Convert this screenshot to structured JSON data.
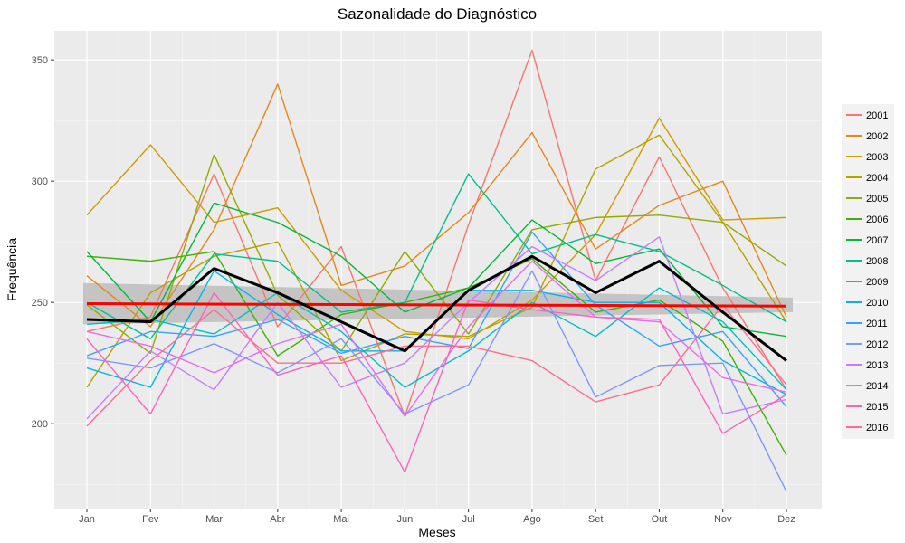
{
  "chart_data": {
    "type": "line",
    "title": "Sazonalidade do Diagnóstico",
    "xlabel": "Meses",
    "ylabel": "Frequência",
    "categories": [
      "Jan",
      "Fev",
      "Mar",
      "Abr",
      "Mai",
      "Jun",
      "Jul",
      "Ago",
      "Set",
      "Out",
      "Nov",
      "Dez"
    ],
    "ylim": [
      165,
      362
    ],
    "yticks": [
      200,
      250,
      300,
      350
    ],
    "grid": true,
    "legend_position": "right",
    "series": [
      {
        "name": "2001",
        "color": "#F8766D",
        "values": [
          238,
          244,
          303,
          240,
          273,
          203,
          282,
          354,
          259,
          310,
          256,
          214
        ]
      },
      {
        "name": "2002",
        "color": "#E7861B",
        "values": [
          261,
          240,
          280,
          340,
          257,
          265,
          287,
          320,
          272,
          290,
          300,
          244
        ]
      },
      {
        "name": "2003",
        "color": "#D09B00",
        "values": [
          286,
          315,
          283,
          289,
          255,
          238,
          235,
          251,
          278,
          326,
          284,
          285
        ]
      },
      {
        "name": "2004",
        "color": "#B3A300",
        "values": [
          215,
          254,
          269,
          275,
          226,
          237,
          236,
          248,
          305,
          319,
          283,
          242
        ]
      },
      {
        "name": "2005",
        "color": "#93AA00",
        "values": [
          249,
          229,
          311,
          253,
          230,
          271,
          237,
          280,
          285,
          286,
          283,
          265
        ]
      },
      {
        "name": "2006",
        "color": "#3BB300",
        "values": [
          269,
          267,
          271,
          228,
          245,
          250,
          256,
          268,
          246,
          251,
          234,
          187
        ]
      },
      {
        "name": "2007",
        "color": "#00BA38",
        "values": [
          271,
          242,
          291,
          283,
          269,
          246,
          256,
          284,
          266,
          272,
          240,
          236
        ]
      },
      {
        "name": "2008",
        "color": "#00C08B",
        "values": [
          250,
          235,
          270,
          267,
          246,
          250,
          303,
          270,
          278,
          271,
          257,
          242
        ]
      },
      {
        "name": "2009",
        "color": "#00BFC4",
        "values": [
          241,
          243,
          237,
          254,
          238,
          215,
          230,
          250,
          236,
          256,
          242,
          214
        ]
      },
      {
        "name": "2010",
        "color": "#00B4F0",
        "values": [
          223,
          215,
          263,
          245,
          230,
          230,
          255,
          255,
          250,
          250,
          226,
          212
        ]
      },
      {
        "name": "2011",
        "color": "#35A2FF",
        "values": [
          228,
          238,
          236,
          243,
          229,
          236,
          231,
          279,
          249,
          232,
          238,
          207
        ]
      },
      {
        "name": "2012",
        "color": "#7F96FF",
        "values": [
          227,
          223,
          233,
          221,
          235,
          204,
          216,
          263,
          211,
          224,
          225,
          172
        ]
      },
      {
        "name": "2013",
        "color": "#C77CFF",
        "values": [
          202,
          230,
          214,
          250,
          215,
          225,
          250,
          273,
          259,
          277,
          204,
          210
        ]
      },
      {
        "name": "2014",
        "color": "#E76BF3",
        "values": [
          238,
          232,
          221,
          233,
          241,
          203,
          240,
          267,
          244,
          242,
          219,
          213
        ]
      },
      {
        "name": "2015",
        "color": "#FF62BC",
        "values": [
          235,
          204,
          254,
          220,
          228,
          180,
          251,
          247,
          244,
          243,
          196,
          212
        ]
      },
      {
        "name": "2016",
        "color": "#FF6C91",
        "values": [
          199,
          226,
          247,
          225,
          225,
          232,
          232,
          226,
          209,
          216,
          249,
          216
        ]
      }
    ],
    "mean_line": {
      "color": "#000000",
      "values": [
        243,
        242,
        264,
        254,
        242,
        230,
        255,
        269,
        254,
        267,
        246,
        226
      ]
    },
    "trend_line": {
      "color": "#FF0000",
      "start": 249.5,
      "end": 248.5
    },
    "confidence_band": {
      "color": "#BDBDBD",
      "lower": [
        241,
        246
      ],
      "upper": [
        258,
        252
      ]
    }
  }
}
